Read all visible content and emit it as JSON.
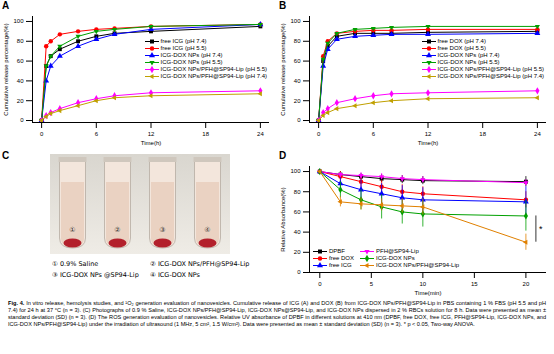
{
  "chart_data": [
    {
      "type": "line",
      "title": "A",
      "x_label": "Time(h)",
      "y_label": "Cumulative release percentage(%)",
      "x": [
        0,
        0.5,
        1,
        2,
        4,
        6,
        8,
        12,
        24
      ],
      "xlim": [
        -1,
        25
      ],
      "xticks": [
        0,
        6,
        12,
        18,
        24
      ],
      "ylim": [
        -2,
        105
      ],
      "yticks": [
        0,
        20,
        40,
        60,
        80,
        100
      ],
      "legend": "right",
      "series": [
        {
          "name": "free ICG (pH 7.4)",
          "color": "#000000",
          "marker": "square",
          "values": [
            0,
            55,
            65,
            72,
            80,
            85,
            88,
            90,
            95
          ]
        },
        {
          "name": "free ICG (pH 5.5)",
          "color": "#ff0000",
          "marker": "circle",
          "values": [
            0,
            75,
            80,
            87,
            90,
            92,
            93,
            95,
            97
          ]
        },
        {
          "name": "ICG-DOX NPs (pH 7.4)",
          "color": "#0000ff",
          "marker": "triangle",
          "values": [
            0,
            40,
            55,
            65,
            75,
            82,
            87,
            92,
            97
          ]
        },
        {
          "name": "ICG-DOX NPs (pH 5.5)",
          "color": "#00a000",
          "marker": "triangle-down",
          "values": [
            0,
            55,
            65,
            75,
            85,
            90,
            92,
            95,
            97
          ]
        },
        {
          "name": "ICG-DOX NPs/PFH@SP94-Lip (pH 5.5)",
          "color": "#ff00ff",
          "marker": "diamond",
          "values": [
            0,
            5,
            8,
            12,
            18,
            22,
            25,
            28,
            30
          ]
        },
        {
          "name": "ICG-DOX NPs/PFH@SP94-Lip (pH 7.4)",
          "color": "#c0a000",
          "marker": "triangle-left",
          "values": [
            0,
            4,
            7,
            10,
            15,
            20,
            23,
            25,
            27
          ]
        }
      ]
    },
    {
      "type": "line",
      "title": "B",
      "x_label": "Time(h)",
      "y_label": "Cumulative release percentage(%)",
      "x": [
        0,
        0.5,
        1,
        2,
        4,
        6,
        8,
        12,
        24
      ],
      "xlim": [
        -1,
        25
      ],
      "xticks": [
        0,
        6,
        12,
        18,
        24
      ],
      "ylim": [
        -2,
        105
      ],
      "yticks": [
        0,
        20,
        40,
        60,
        80,
        100
      ],
      "legend": "right",
      "series": [
        {
          "name": "free DOX (pH 7.4)",
          "color": "#000000",
          "marker": "square",
          "values": [
            0,
            60,
            75,
            85,
            88,
            88,
            88,
            89,
            90
          ]
        },
        {
          "name": "free DOX (pH 5.5)",
          "color": "#ff0000",
          "marker": "circle",
          "values": [
            0,
            65,
            80,
            88,
            90,
            91,
            91,
            92,
            92
          ]
        },
        {
          "name": "ICG-DOX NPs (pH 7.4)",
          "color": "#0000ff",
          "marker": "triangle",
          "values": [
            0,
            55,
            72,
            82,
            85,
            86,
            87,
            87,
            88
          ]
        },
        {
          "name": "ICG-DOX NPs (pH 5.5)",
          "color": "#00a000",
          "marker": "triangle-down",
          "values": [
            0,
            62,
            78,
            88,
            92,
            93,
            94,
            95,
            95
          ]
        },
        {
          "name": "ICG-DOX NPs/PFH@SP94-Lip (pH 5.5)",
          "color": "#ff00ff",
          "marker": "diamond",
          "values": [
            0,
            8,
            12,
            18,
            22,
            25,
            27,
            28,
            30
          ]
        },
        {
          "name": "ICG-DOX NPs/PFH@SP94-Lip (pH 7.4)",
          "color": "#c0a000",
          "marker": "triangle-left",
          "values": [
            0,
            5,
            8,
            12,
            15,
            18,
            20,
            22,
            23
          ]
        }
      ]
    },
    {
      "type": "line",
      "title": "D",
      "x_label": "Time(min)",
      "y_label": "Relative Absorbance(%)",
      "x": [
        0,
        2,
        4,
        6,
        8,
        10,
        20
      ],
      "xlim": [
        -1,
        22
      ],
      "xticks": [
        0,
        5,
        10,
        15,
        20
      ],
      "ylim": [
        0,
        105
      ],
      "yticks": [
        0,
        20,
        40,
        60,
        80,
        100
      ],
      "legend": "bottom-left",
      "series": [
        {
          "name": "DPBF",
          "color": "#000000",
          "marker": "square",
          "values": [
            100,
            97,
            95,
            93,
            92,
            91,
            90
          ],
          "errors": [
            0,
            3,
            3,
            4,
            4,
            4,
            5
          ]
        },
        {
          "name": "free DOX",
          "color": "#ff0000",
          "marker": "circle",
          "values": [
            100,
            95,
            90,
            85,
            80,
            78,
            72
          ],
          "errors": [
            0,
            5,
            6,
            6,
            7,
            7,
            8
          ]
        },
        {
          "name": "free ICG",
          "color": "#0000ff",
          "marker": "triangle",
          "values": [
            100,
            88,
            82,
            78,
            74,
            72,
            70
          ],
          "errors": [
            0,
            8,
            10,
            10,
            12,
            12,
            15
          ]
        },
        {
          "name": "PFH@SP94-Lip",
          "color": "#ff00ff",
          "marker": "triangle-down",
          "values": [
            100,
            97,
            96,
            95,
            93,
            92,
            89
          ],
          "errors": [
            0,
            2,
            3,
            3,
            3,
            3,
            3
          ]
        },
        {
          "name": "ICG-DOX NPs",
          "color": "#00a000",
          "marker": "diamond",
          "values": [
            100,
            82,
            72,
            65,
            60,
            58,
            56
          ],
          "errors": [
            0,
            8,
            10,
            12,
            12,
            13,
            15
          ]
        },
        {
          "name": "ICG-DOX NPs/PFH@SP94-Lip",
          "color": "#e08000",
          "marker": "triangle-left",
          "values": [
            100,
            70,
            68,
            67,
            66,
            65,
            30
          ],
          "errors": [
            0,
            5,
            6,
            6,
            7,
            8,
            8
          ]
        }
      ],
      "annotations": [
        {
          "text": "*",
          "between": [
            "ICG-DOX NPs",
            "ICG-DOX NPs/PFH@SP94-Lip"
          ]
        }
      ]
    }
  ],
  "panel_c": {
    "title": "C",
    "tube_labels": [
      "①",
      "②",
      "③",
      "④"
    ],
    "labels": [
      "① 0.9% Saline",
      "② ICG-DOX NPs/PFH@SP94-Lip",
      "③ ICG-DOX NPs @SP94-Lip",
      "④ ICG-DOX NPs"
    ]
  },
  "caption": {
    "label": "Fig. 4.",
    "text": "In vitro release, hemolysis studies, and ¹O₂ generation evaluation of nanovesicles. Cumulative release of ICG (A) and DOX (B) from ICG-DOX NPs/PFH@SP94-Lip in PBS containing 1 % FBS (pH 5.5 and pH 7.4) for 24 h at 37 °C (n = 3). (C) Photographs of 0.9 % Saline, ICG-DOX NPs/PFH@SP94-Lip, ICG-DOX NPs@SP94-Lip, and ICG-DOX NPs dispersed in 2 % RBCs solution for 8 h. Data were presented as mean ± standard deviation (SD) (n = 3). (D) The ROS generation evaluation of nanovesicles. Relative UV absorbance of DPBF in different solutions at 410 nm (DPBF, free DOX, free ICG, PFH@SP94-Lip, ICG-DOX NPs, and ICG-DOX NPs/PFH@SP94-Lip) under the irradiation of ultrasound (1 MHz, 5 cm², 1.5 W/cm²). Data were presented as mean ± standard deviation (SD) (n = 3). * p < 0.05, Two-way ANOVA."
  }
}
